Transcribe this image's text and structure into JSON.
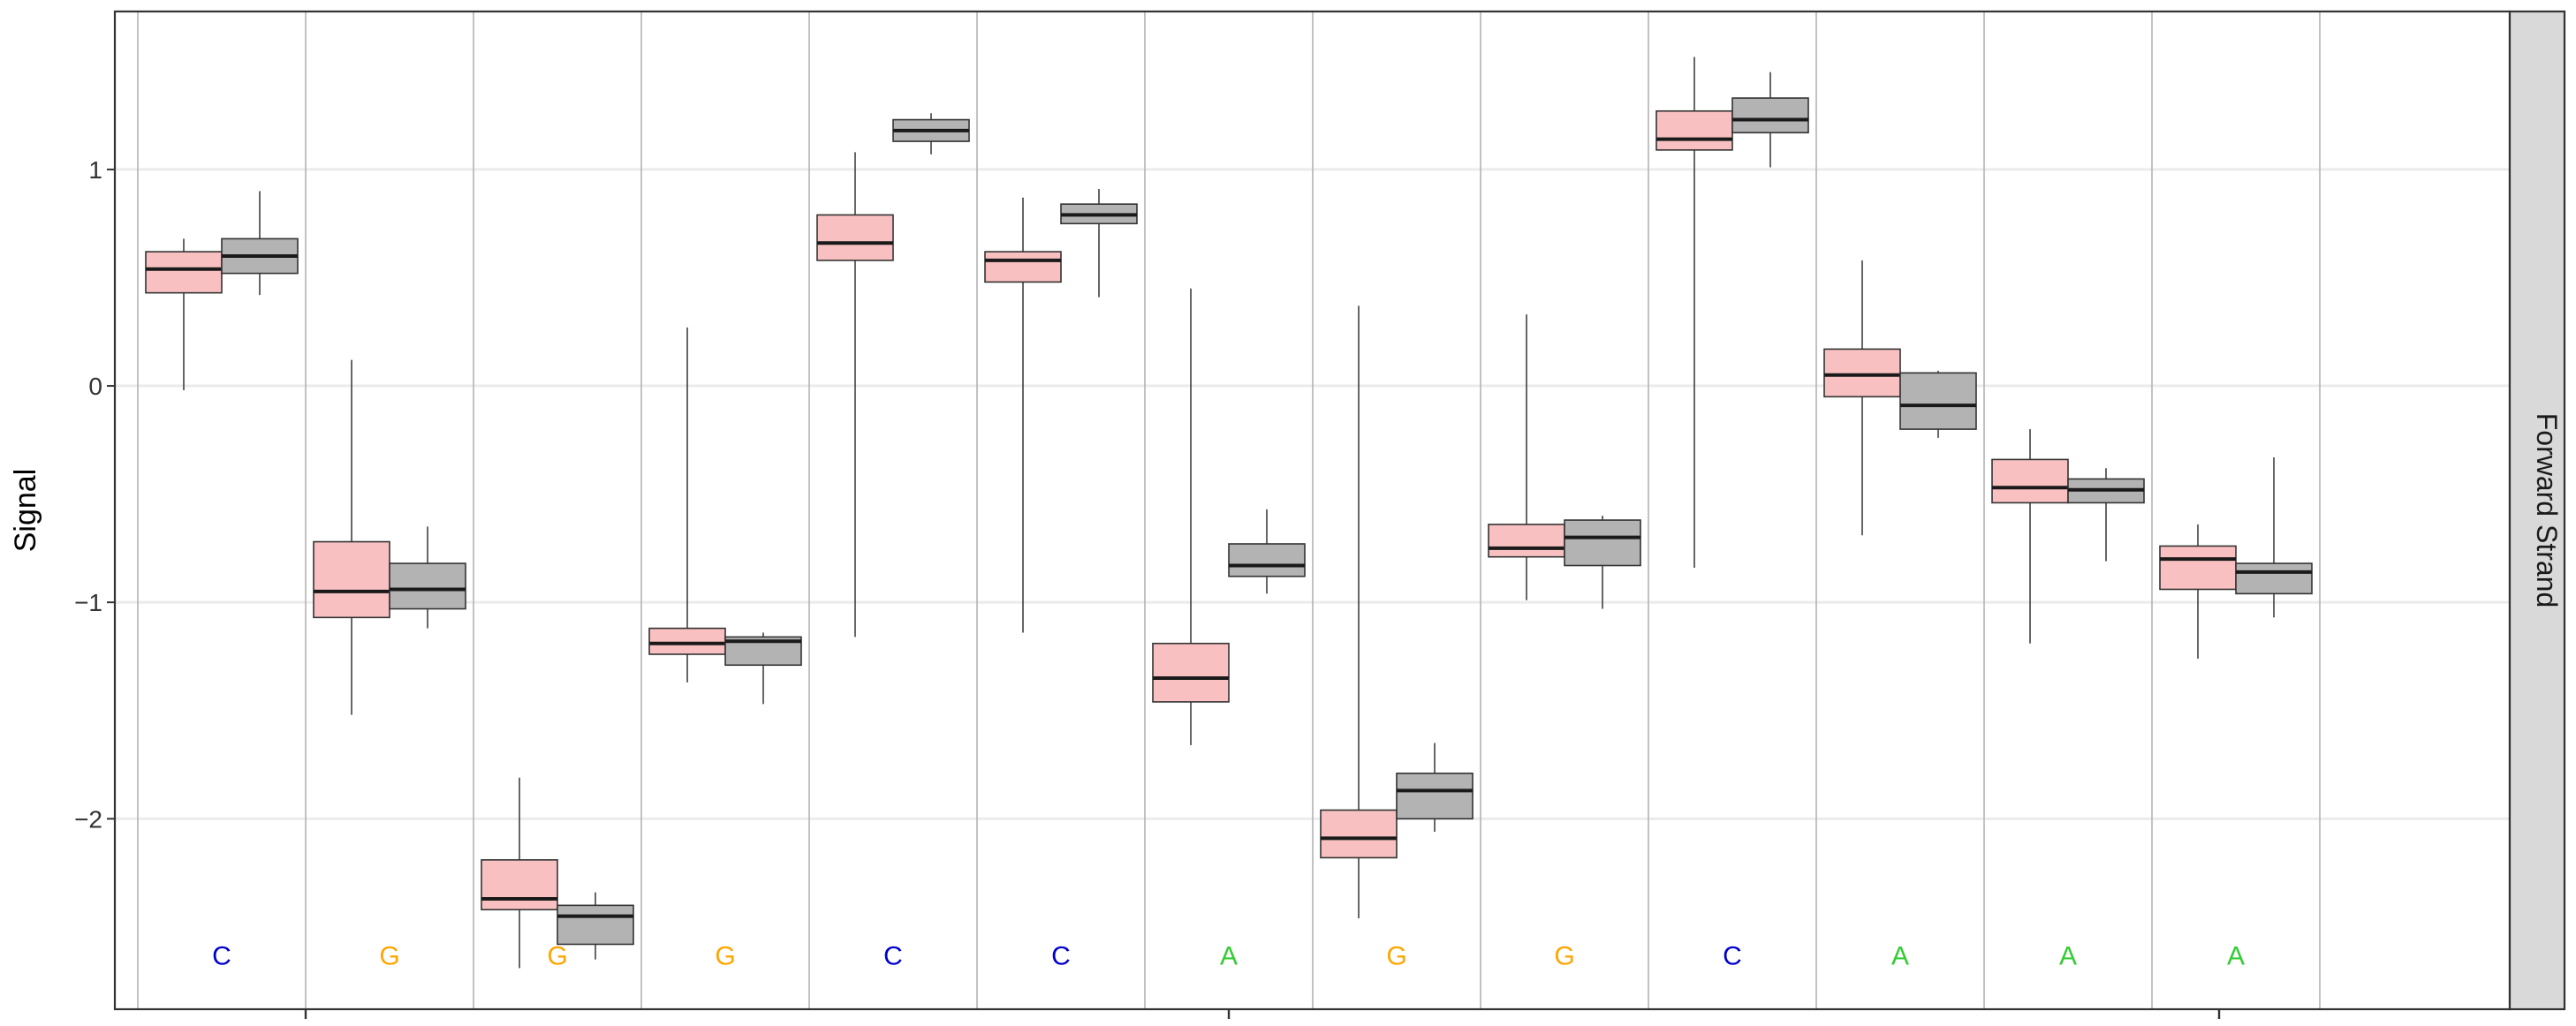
{
  "chart_data": {
    "type": "boxplot",
    "ylabel": "Signal",
    "xlabel": "",
    "strip_label": "Forward Strand",
    "ylim": [
      -2.88,
      1.73
    ],
    "y_ticks": [
      1,
      0,
      -1,
      -2
    ],
    "y_tick_labels": [
      "1",
      "0",
      "−1",
      "−2"
    ],
    "grid": true,
    "x_major_ticks": 3,
    "base_y": -2.63,
    "bases": [
      "C",
      "G",
      "G",
      "G",
      "C",
      "C",
      "A",
      "G",
      "G",
      "C",
      "A",
      "A",
      "A"
    ],
    "base_colors": {
      "C": "#0000cc",
      "G": "#ffa500",
      "A": "#33cc33"
    },
    "series": [
      {
        "name": "",
        "color": "#f8c0c0",
        "boxes": [
          {
            "position": 1,
            "whisker_low": -0.02,
            "q1": 0.43,
            "median": 0.54,
            "q3": 0.62,
            "whisker_high": 0.68
          },
          {
            "position": 2,
            "whisker_low": -1.52,
            "q1": -1.07,
            "median": -0.95,
            "q3": -0.72,
            "whisker_high": 0.12
          },
          {
            "position": 3,
            "whisker_low": -2.69,
            "q1": -2.42,
            "median": -2.37,
            "q3": -2.19,
            "whisker_high": -1.81
          },
          {
            "position": 4,
            "whisker_low": -1.37,
            "q1": -1.24,
            "median": -1.19,
            "q3": -1.12,
            "whisker_high": 0.27
          },
          {
            "position": 5,
            "whisker_low": -1.16,
            "q1": 0.58,
            "median": 0.66,
            "q3": 0.79,
            "whisker_high": 1.08
          },
          {
            "position": 6,
            "whisker_low": -1.14,
            "q1": 0.48,
            "median": 0.58,
            "q3": 0.62,
            "whisker_high": 0.87
          },
          {
            "position": 7,
            "whisker_low": -1.66,
            "q1": -1.46,
            "median": -1.35,
            "q3": -1.19,
            "whisker_high": 0.45
          },
          {
            "position": 8,
            "whisker_low": -2.46,
            "q1": -2.18,
            "median": -2.09,
            "q3": -1.96,
            "whisker_high": 0.37
          },
          {
            "position": 9,
            "whisker_low": -0.99,
            "q1": -0.79,
            "median": -0.75,
            "q3": -0.64,
            "whisker_high": 0.33
          },
          {
            "position": 10,
            "whisker_low": -0.84,
            "q1": 1.09,
            "median": 1.14,
            "q3": 1.27,
            "whisker_high": 1.52
          },
          {
            "position": 11,
            "whisker_low": -0.69,
            "q1": -0.05,
            "median": 0.05,
            "q3": 0.17,
            "whisker_high": 0.58
          },
          {
            "position": 12,
            "whisker_low": -1.19,
            "q1": -0.54,
            "median": -0.47,
            "q3": -0.34,
            "whisker_high": -0.2
          },
          {
            "position": 13,
            "whisker_low": -1.26,
            "q1": -0.94,
            "median": -0.8,
            "q3": -0.74,
            "whisker_high": -0.64
          }
        ]
      },
      {
        "name": "",
        "color": "#b3b3b3",
        "boxes": [
          {
            "position": 1,
            "whisker_low": 0.42,
            "q1": 0.52,
            "median": 0.6,
            "q3": 0.68,
            "whisker_high": 0.9
          },
          {
            "position": 2,
            "whisker_low": -1.12,
            "q1": -1.03,
            "median": -0.94,
            "q3": -0.82,
            "whisker_high": -0.65
          },
          {
            "position": 3,
            "whisker_low": -2.65,
            "q1": -2.58,
            "median": -2.45,
            "q3": -2.4,
            "whisker_high": -2.34
          },
          {
            "position": 4,
            "whisker_low": -1.47,
            "q1": -1.29,
            "median": -1.18,
            "q3": -1.16,
            "whisker_high": -1.14
          },
          {
            "position": 5,
            "whisker_low": 1.07,
            "q1": 1.13,
            "median": 1.18,
            "q3": 1.23,
            "whisker_high": 1.26
          },
          {
            "position": 6,
            "whisker_low": 0.41,
            "q1": 0.75,
            "median": 0.79,
            "q3": 0.84,
            "whisker_high": 0.91
          },
          {
            "position": 7,
            "whisker_low": -0.96,
            "q1": -0.88,
            "median": -0.83,
            "q3": -0.73,
            "whisker_high": -0.57
          },
          {
            "position": 8,
            "whisker_low": -2.06,
            "q1": -2.0,
            "median": -1.87,
            "q3": -1.79,
            "whisker_high": -1.65
          },
          {
            "position": 9,
            "whisker_low": -1.03,
            "q1": -0.83,
            "median": -0.7,
            "q3": -0.62,
            "whisker_high": -0.6
          },
          {
            "position": 10,
            "whisker_low": 1.01,
            "q1": 1.17,
            "median": 1.23,
            "q3": 1.33,
            "whisker_high": 1.45
          },
          {
            "position": 11,
            "whisker_low": -0.24,
            "q1": -0.2,
            "median": -0.09,
            "q3": 0.06,
            "whisker_high": 0.07
          },
          {
            "position": 12,
            "whisker_low": -0.81,
            "q1": -0.54,
            "median": -0.48,
            "q3": -0.43,
            "whisker_high": -0.38
          },
          {
            "position": 13,
            "whisker_low": -1.07,
            "q1": -0.96,
            "median": -0.86,
            "q3": -0.82,
            "whisker_high": -0.33
          }
        ]
      }
    ]
  }
}
